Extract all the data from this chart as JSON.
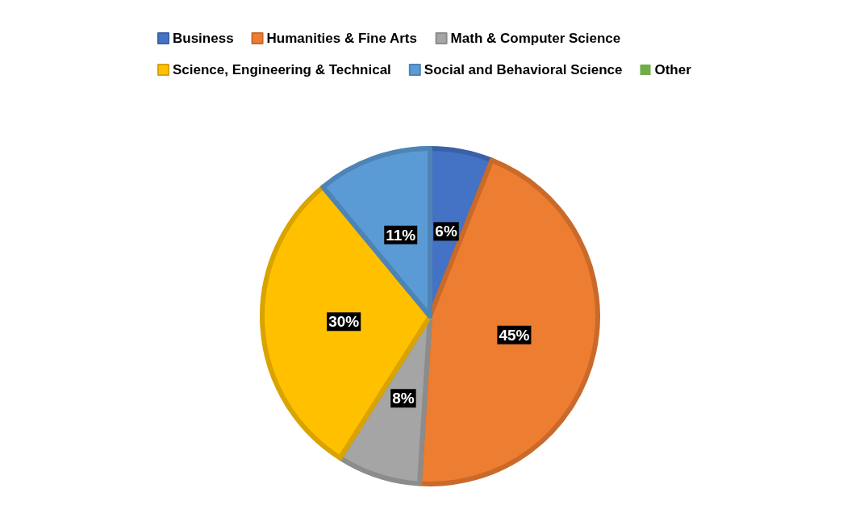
{
  "chart_data": {
    "type": "pie",
    "categories": [
      "Business",
      "Humanities & Fine Arts",
      "Math & Computer Science",
      "Science, Engineering & Technical",
      "Social and Behavioral Science",
      "Other"
    ],
    "values": [
      6,
      45,
      8,
      30,
      11,
      0
    ],
    "colors": [
      "#4472c4",
      "#ed7d31",
      "#a5a5a5",
      "#ffc000",
      "#5b9bd5",
      "#70ad47"
    ],
    "value_labels": [
      "6%",
      "45%",
      "8%",
      "30%",
      "11%",
      null
    ],
    "legend": "top"
  }
}
